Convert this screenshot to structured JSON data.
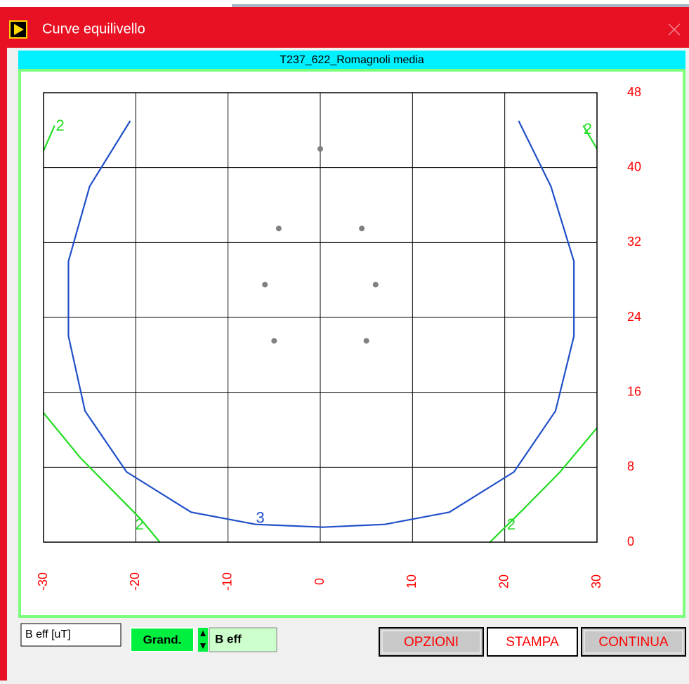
{
  "window": {
    "title": "Curve equilivello"
  },
  "chart_data": {
    "type": "contour",
    "title": "T237_622_Romagnoli media",
    "xlim": [
      -30,
      30
    ],
    "ylim": [
      0,
      48
    ],
    "xticks": [
      -30,
      -20,
      -10,
      0,
      10,
      20,
      30
    ],
    "yticks": [
      0,
      8,
      16,
      24,
      32,
      40,
      48
    ],
    "grid": true,
    "tick_color": "#ff0000",
    "points": {
      "color": "#808080",
      "x": [
        0,
        -4.5,
        4.5,
        -6,
        6,
        -5,
        5
      ],
      "y": [
        42,
        33.5,
        33.5,
        27.5,
        27.5,
        21.5,
        21.5
      ]
    },
    "contours": [
      {
        "label": "3",
        "color": "#1f4fc8",
        "lines": [
          {
            "x": [
              -20.6,
              -25,
              -27.3,
              -27.3,
              -25.5,
              -21,
              -14,
              -7,
              0.3,
              7,
              14,
              21,
              25.5,
              27.5,
              27.5,
              25,
              21.5
            ],
            "y": [
              45,
              38,
              30,
              22,
              14,
              7.5,
              3.2,
              1.9,
              1.6,
              1.9,
              3.2,
              7.5,
              14,
              22,
              30,
              38,
              45
            ]
          }
        ],
        "label_positions": [
          {
            "x": -6.5,
            "y": 2.5
          }
        ]
      },
      {
        "label": "2",
        "color": "#22dd22",
        "lines": [
          {
            "x": [
              -30,
              -28.8
            ],
            "y": [
              41.8,
              44.5
            ]
          },
          {
            "x": [
              28.5,
              30
            ],
            "y": [
              44.5,
              42
            ]
          },
          {
            "x": [
              -30,
              -26,
              -22,
              -19.5,
              -17.4
            ],
            "y": [
              13.8,
              9,
              5,
              2.5,
              0
            ]
          },
          {
            "x": [
              30,
              26,
              22,
              18.4
            ],
            "y": [
              12.2,
              7.5,
              3.5,
              0
            ]
          }
        ],
        "label_positions": [
          {
            "x": -28.2,
            "y": 44.4
          },
          {
            "x": 29,
            "y": 44
          },
          {
            "x": -19.6,
            "y": 1.8
          },
          {
            "x": 20.7,
            "y": 1.8
          }
        ]
      }
    ]
  },
  "controls": {
    "unit_field": "B eff [uT]",
    "quantity_label": "Grand.",
    "quantity_value": "B eff",
    "buttons": [
      "OPZIONI",
      "STAMPA",
      "CONTINUA"
    ]
  }
}
